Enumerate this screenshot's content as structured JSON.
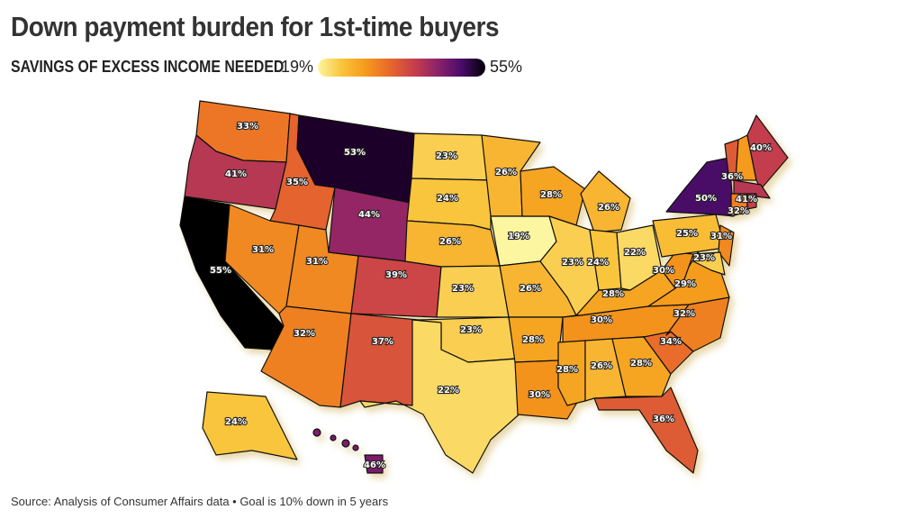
{
  "title": "Down payment burden for 1st-time buyers",
  "legend": {
    "label": "SAVINGS OF EXCESS INCOME NEEDED",
    "min": "19%",
    "max": "55%",
    "min_value": 19,
    "max_value": 55
  },
  "colormap": [
    "#fcf6a0",
    "#f9c43a",
    "#f59a1d",
    "#e8682a",
    "#c83f4b",
    "#8c2369",
    "#4a0c6b",
    "#000004"
  ],
  "source": "Source: Analysis of Consumer Affairs data • Goal is 10% down in 5 years",
  "states": {
    "WA": 33,
    "OR": 41,
    "CA": 55,
    "ID": 35,
    "NV": 31,
    "UT": 31,
    "AZ": 32,
    "MT": 53,
    "WY": 44,
    "CO": 39,
    "NM": 37,
    "ND": 23,
    "SD": 24,
    "NE": 26,
    "KS": 23,
    "OK": 23,
    "TX": 22,
    "MN": 26,
    "IA": 19,
    "MO": 26,
    "AR": 28,
    "LA": 30,
    "WI": 28,
    "IL": 23,
    "MI": 26,
    "IN": 24,
    "OH": 22,
    "KY": 28,
    "TN": 30,
    "MS": 28,
    "AL": 26,
    "GA": 28,
    "FL": 36,
    "SC": 34,
    "NC": 32,
    "VA": 29,
    "WV": 30,
    "PA": 25,
    "NY": 50,
    "VT": 36,
    "ME": 40,
    "MA": 41,
    "CT": 32,
    "NJ": 31,
    "MD": 23,
    "AK": 24,
    "HI": 46
  },
  "labels": {
    "WA": "33%",
    "OR": "41%",
    "CA": "55%",
    "ID": "35%",
    "NV": "31%",
    "UT": "31%",
    "AZ": "32%",
    "MT": "53%",
    "WY": "44%",
    "CO": "39%",
    "NM": "37%",
    "ND": "23%",
    "SD": "24%",
    "NE": "26%",
    "KS": "23%",
    "OK": "23%",
    "TX": "22%",
    "MN": "26%",
    "IA": "19%",
    "MO": "26%",
    "AR": "28%",
    "LA": "30%",
    "WI": "28%",
    "IL": "23%",
    "MI": "26%",
    "IN": "24%",
    "OH": "22%",
    "KY": "28%",
    "TN": "30%",
    "MS": "28%",
    "AL": "26%",
    "GA": "28%",
    "FL": "36%",
    "SC": "34%",
    "NC": "32%",
    "VA": "29%",
    "WV": "30%",
    "PA": "25%",
    "NY": "50%",
    "VT": "36%",
    "ME": "40%",
    "MA": "41%",
    "CT": "32%",
    "NJ": "31%",
    "MD": "23%",
    "AK": "24%",
    "HI": "46%"
  }
}
